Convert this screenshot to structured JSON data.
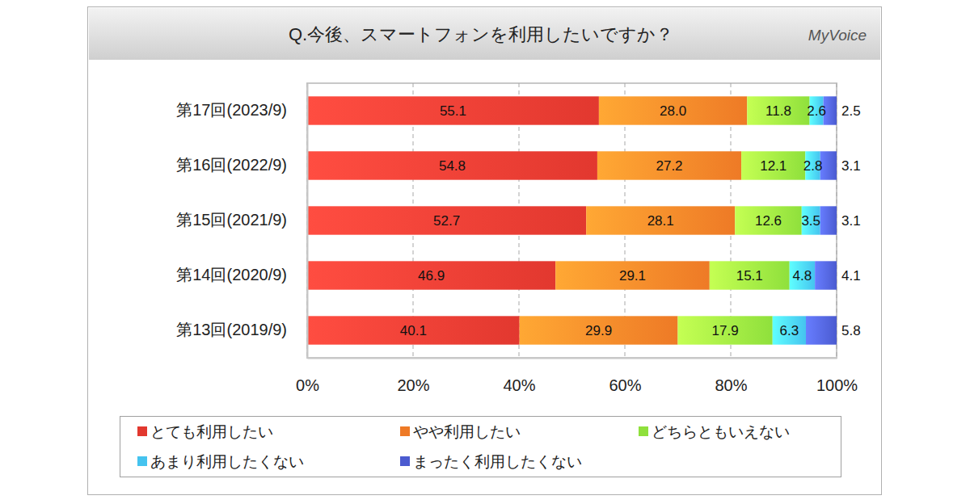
{
  "chart_data": {
    "type": "bar",
    "title": "Q.今後、スマートフォンを利用したいですか？",
    "annotations": [
      "MyVoice"
    ],
    "orientation": "horizontal",
    "stacked": true,
    "data_labels": true,
    "grid": true,
    "legend": "bottom",
    "categories": [
      "第17回(2023/9)",
      "第16回(2022/9)",
      "第15回(2021/9)",
      "第14回(2020/9)",
      "第13回(2019/9)"
    ],
    "xlim": [
      0,
      100
    ],
    "xticks": [
      {
        "value": 0,
        "label": "0%"
      },
      {
        "value": 20,
        "label": "20%"
      },
      {
        "value": 40,
        "label": "40%"
      },
      {
        "value": 60,
        "label": "60%"
      },
      {
        "value": 80,
        "label": "80%"
      },
      {
        "value": 100,
        "label": "100%"
      }
    ],
    "series": [
      {
        "name": "とても利用したい",
        "color": "#e2382f",
        "values": [
          55.1,
          54.8,
          52.7,
          46.9,
          40.1
        ]
      },
      {
        "name": "やや利用したい",
        "color": "#ee7a26",
        "values": [
          28.0,
          27.2,
          28.1,
          29.1,
          29.9
        ],
        "value_labels": [
          "28.0",
          "27.2",
          "28.1",
          "29.1",
          "29.9"
        ]
      },
      {
        "name": "どちらともいえない",
        "color": "#8fe03c",
        "values": [
          11.8,
          12.1,
          12.6,
          15.1,
          17.9
        ]
      },
      {
        "name": "あまり利用したくない",
        "color": "#45c3ef",
        "values": [
          2.6,
          2.8,
          3.5,
          4.8,
          6.3
        ]
      },
      {
        "name": "まったく利用したくない",
        "color": "#4b5bd0",
        "values": [
          2.5,
          3.1,
          3.1,
          4.1,
          5.8
        ]
      }
    ]
  }
}
